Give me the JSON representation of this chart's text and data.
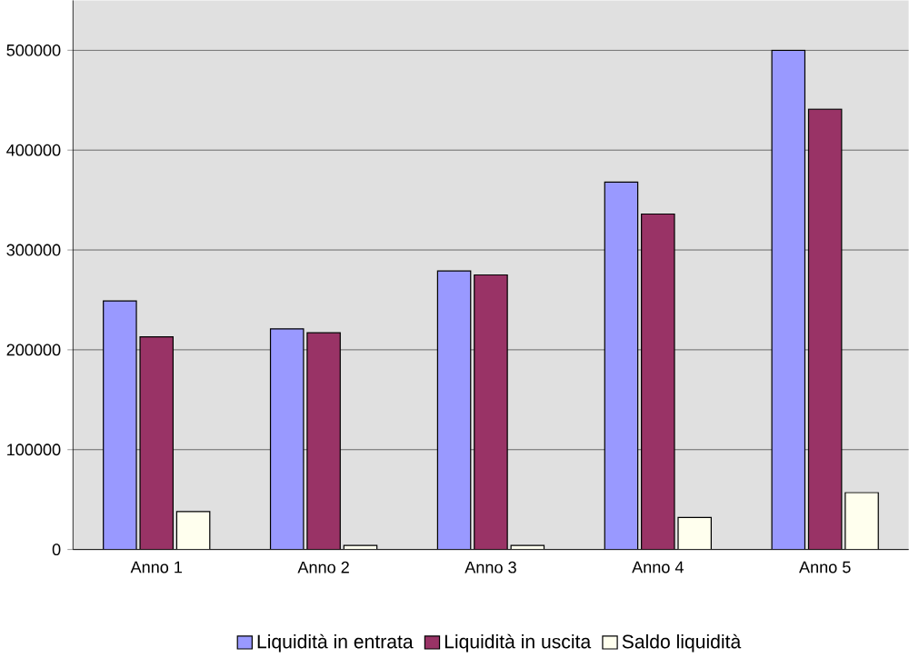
{
  "chart_data": {
    "type": "bar",
    "categories": [
      "Anno 1",
      "Anno 2",
      "Anno 3",
      "Anno 4",
      "Anno 5"
    ],
    "series": [
      {
        "name": "Liquidità in entrata",
        "color": "#9999ff",
        "values": [
          249000,
          221000,
          279000,
          368000,
          500000
        ]
      },
      {
        "name": "Liquidità in uscita",
        "color": "#993366",
        "values": [
          213000,
          217000,
          275000,
          336000,
          441000
        ]
      },
      {
        "name": "Saldo liquidità",
        "color": "#ffffee",
        "values": [
          38000,
          4000,
          4000,
          32000,
          57000
        ]
      }
    ],
    "ylim": [
      0,
      550000
    ],
    "yticks": [
      0,
      100000,
      200000,
      300000,
      400000,
      500000
    ],
    "grid": "y",
    "legend": "bottom"
  }
}
